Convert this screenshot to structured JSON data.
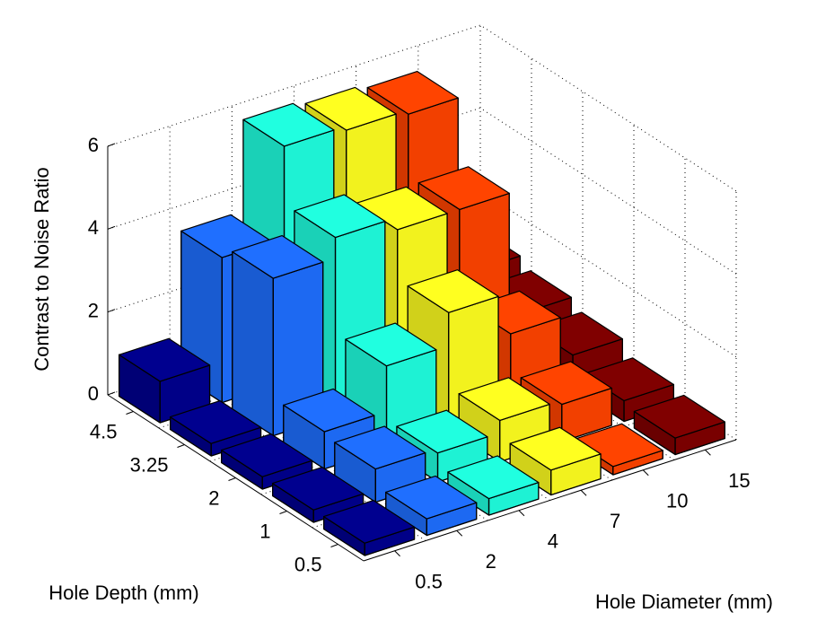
{
  "chart_data": {
    "type": "bar3",
    "x_label": "Hole Diameter (mm)",
    "y_label": "Hole Depth (mm)",
    "z_label": "Contrast to Noise Ratio",
    "x_categories": [
      "0.5",
      "2",
      "4",
      "7",
      "10",
      "15"
    ],
    "y_categories": [
      "0.5",
      "1",
      "2",
      "3.25",
      "4.5"
    ],
    "colors": [
      "#00008f",
      "#1f6fff",
      "#20ffe0",
      "#ffff20",
      "#ff4400",
      "#800000"
    ],
    "values": [
      [
        0.3,
        0.4,
        0.4,
        0.6,
        0.2,
        0.4
      ],
      [
        0.3,
        0.8,
        0.7,
        1.0,
        0.9,
        0.5
      ],
      [
        0.3,
        0.9,
        2.0,
        2.8,
        1.8,
        0.8
      ],
      [
        0.3,
        3.8,
        4.3,
        4.0,
        4.0,
        1.0
      ],
      [
        1.0,
        3.5,
        5.7,
        5.6,
        5.5,
        1.2
      ]
    ],
    "zlim": [
      0,
      6
    ],
    "zticks": [
      0,
      2,
      4,
      6
    ],
    "grid": true
  }
}
